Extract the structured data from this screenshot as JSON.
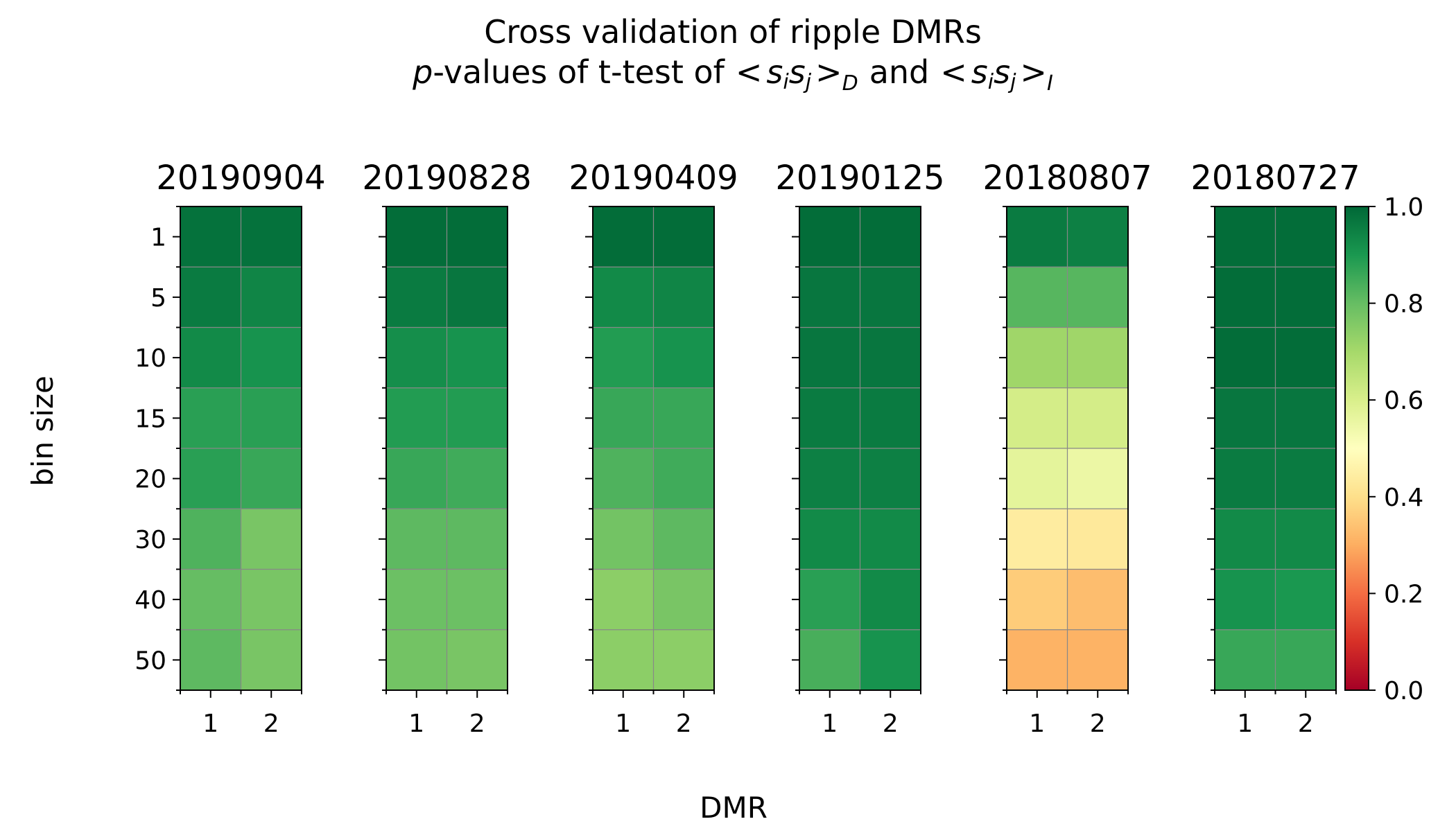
{
  "chart_data": {
    "type": "heatmap",
    "title": {
      "line1": "Cross validation of ripple DMRs",
      "p": "p",
      "rest": "-values of t-test of",
      "and": "and"
    },
    "xlabel": "DMR",
    "ylabel": "bin size",
    "x_categories": [
      "1",
      "2"
    ],
    "y_categories": [
      "1",
      "5",
      "10",
      "15",
      "20",
      "30",
      "40",
      "50"
    ],
    "colormap": "RdYlGn",
    "vmin": 0.0,
    "vmax": 1.0,
    "colorbar_ticks": [
      "0.0",
      "0.2",
      "0.4",
      "0.6",
      "0.8",
      "1.0"
    ],
    "grid": true,
    "panels": [
      {
        "name": "20190904",
        "values": [
          [
            0.98,
            0.98
          ],
          [
            0.96,
            0.94
          ],
          [
            0.93,
            0.91
          ],
          [
            0.88,
            0.88
          ],
          [
            0.88,
            0.86
          ],
          [
            0.83,
            0.77
          ],
          [
            0.8,
            0.77
          ],
          [
            0.81,
            0.77
          ]
        ]
      },
      {
        "name": "20190828",
        "values": [
          [
            0.99,
            0.99
          ],
          [
            0.96,
            0.97
          ],
          [
            0.92,
            0.91
          ],
          [
            0.89,
            0.89
          ],
          [
            0.86,
            0.85
          ],
          [
            0.81,
            0.81
          ],
          [
            0.79,
            0.79
          ],
          [
            0.78,
            0.77
          ]
        ]
      },
      {
        "name": "20190409",
        "values": [
          [
            0.99,
            0.99
          ],
          [
            0.93,
            0.94
          ],
          [
            0.89,
            0.91
          ],
          [
            0.86,
            0.86
          ],
          [
            0.83,
            0.85
          ],
          [
            0.78,
            0.81
          ],
          [
            0.74,
            0.77
          ],
          [
            0.74,
            0.74
          ]
        ]
      },
      {
        "name": "20190125",
        "values": [
          [
            0.99,
            0.99
          ],
          [
            0.97,
            0.97
          ],
          [
            0.97,
            0.97
          ],
          [
            0.96,
            0.96
          ],
          [
            0.95,
            0.95
          ],
          [
            0.93,
            0.93
          ],
          [
            0.88,
            0.93
          ],
          [
            0.84,
            0.91
          ]
        ]
      },
      {
        "name": "20180807",
        "values": [
          [
            0.96,
            0.95
          ],
          [
            0.82,
            0.82
          ],
          [
            0.71,
            0.71
          ],
          [
            0.61,
            0.61
          ],
          [
            0.57,
            0.55
          ],
          [
            0.44,
            0.43
          ],
          [
            0.36,
            0.33
          ],
          [
            0.31,
            0.31
          ]
        ]
      },
      {
        "name": "20180727",
        "values": [
          [
            0.99,
            0.99
          ],
          [
            0.99,
            0.99
          ],
          [
            0.99,
            0.99
          ],
          [
            0.97,
            0.97
          ],
          [
            0.96,
            0.96
          ],
          [
            0.93,
            0.93
          ],
          [
            0.91,
            0.9
          ],
          [
            0.86,
            0.86
          ]
        ]
      }
    ]
  }
}
